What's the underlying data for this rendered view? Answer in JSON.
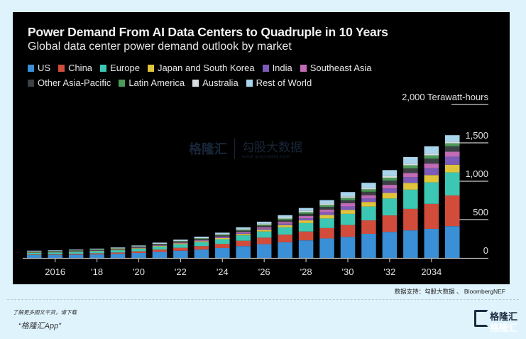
{
  "chart_data": {
    "type": "bar",
    "stacked": true,
    "title": "Power Demand From AI Data Centers to Quadruple in 10 Years",
    "subtitle": "Global data center power demand outlook by market",
    "unit_label": "2,000 Terawatt-hours",
    "xlabel": "",
    "ylabel": "Terawatt-hours",
    "ylim": [
      0,
      2000
    ],
    "yticks": [
      0,
      500,
      1000,
      1500,
      2000
    ],
    "ytick_labels": [
      "0",
      "500",
      "1,000",
      "1,500",
      "2,000 Terawatt-hours"
    ],
    "categories": [
      2015,
      2016,
      2017,
      2018,
      2019,
      2020,
      2021,
      2022,
      2023,
      2024,
      2025,
      2026,
      2027,
      2028,
      2029,
      2030,
      2031,
      2032,
      2033,
      2034,
      2035
    ],
    "xtick_labels": [
      {
        "year": 2016,
        "label": "2016"
      },
      {
        "year": 2018,
        "label": "'18"
      },
      {
        "year": 2020,
        "label": "'20"
      },
      {
        "year": 2022,
        "label": "'22"
      },
      {
        "year": 2024,
        "label": "'24"
      },
      {
        "year": 2026,
        "label": "'26"
      },
      {
        "year": 2028,
        "label": "'28"
      },
      {
        "year": 2030,
        "label": "'30"
      },
      {
        "year": 2032,
        "label": "'32"
      },
      {
        "year": 2034,
        "label": "2034"
      }
    ],
    "legend_position": "top-left",
    "grid": "y-axis ticks only (right side)",
    "series": [
      {
        "name": "US",
        "color": "#3a8fd6",
        "values": [
          38,
          40,
          44,
          48,
          55,
          65,
          80,
          95,
          110,
          130,
          155,
          180,
          205,
          230,
          255,
          275,
          315,
          340,
          360,
          380,
          415
        ]
      },
      {
        "name": "China",
        "color": "#d24c3c",
        "values": [
          8,
          9,
          11,
          13,
          16,
          22,
          30,
          38,
          45,
          55,
          70,
          85,
          100,
          115,
          135,
          155,
          175,
          215,
          280,
          325,
          400
        ]
      },
      {
        "name": "Europe",
        "color": "#3cc7b4",
        "values": [
          22,
          24,
          26,
          28,
          30,
          34,
          40,
          46,
          52,
          60,
          70,
          80,
          95,
          110,
          125,
          145,
          180,
          220,
          250,
          280,
          300
        ]
      },
      {
        "name": "Japan and South Korea",
        "color": "#e0c43c",
        "values": [
          4,
          4,
          5,
          5,
          6,
          7,
          9,
          11,
          13,
          15,
          18,
          22,
          28,
          35,
          45,
          52,
          60,
          72,
          88,
          95,
          100
        ]
      },
      {
        "name": "India",
        "color": "#7d5bb8",
        "values": [
          1,
          1,
          1,
          2,
          2,
          3,
          4,
          5,
          6,
          8,
          11,
          15,
          20,
          28,
          36,
          45,
          48,
          58,
          75,
          90,
          105
        ]
      },
      {
        "name": "Southeast Asia",
        "color": "#c26bb6",
        "values": [
          2,
          2,
          2,
          3,
          3,
          4,
          5,
          6,
          8,
          10,
          13,
          17,
          22,
          28,
          34,
          42,
          40,
          48,
          55,
          60,
          65
        ]
      },
      {
        "name": "Other Asia-Pacific",
        "color": "#3b4044",
        "values": [
          6,
          6,
          7,
          7,
          8,
          9,
          10,
          12,
          14,
          16,
          19,
          22,
          26,
          30,
          35,
          40,
          45,
          55,
          60,
          65,
          70
        ]
      },
      {
        "name": "Latin America",
        "color": "#4c9a58",
        "values": [
          4,
          4,
          4,
          5,
          5,
          6,
          7,
          8,
          9,
          11,
          13,
          15,
          18,
          22,
          26,
          30,
          32,
          38,
          40,
          42,
          40
        ]
      },
      {
        "name": "Australia",
        "color": "#d8dde0",
        "values": [
          3,
          3,
          3,
          3,
          4,
          4,
          5,
          6,
          7,
          8,
          10,
          12,
          14,
          16,
          18,
          20,
          20,
          22,
          22,
          23,
          20
        ]
      },
      {
        "name": "Rest of World",
        "color": "#a8d4ec",
        "values": [
          7,
          7,
          7,
          8,
          8,
          9,
          10,
          12,
          14,
          17,
          21,
          25,
          30,
          37,
          45,
          55,
          65,
          77,
          85,
          95,
          85
        ]
      }
    ]
  },
  "watermark": {
    "brand": "格隆汇",
    "partner": "勾股大数据",
    "url": "www.gogudata.com"
  },
  "footer": {
    "source": "数据支持：勾股大数据 、 BloombergNEF",
    "promo_line1": "了解更多图文干货，请下载",
    "promo_line2": "“格隆汇App”",
    "brand_logo_text": "格隆汇"
  }
}
